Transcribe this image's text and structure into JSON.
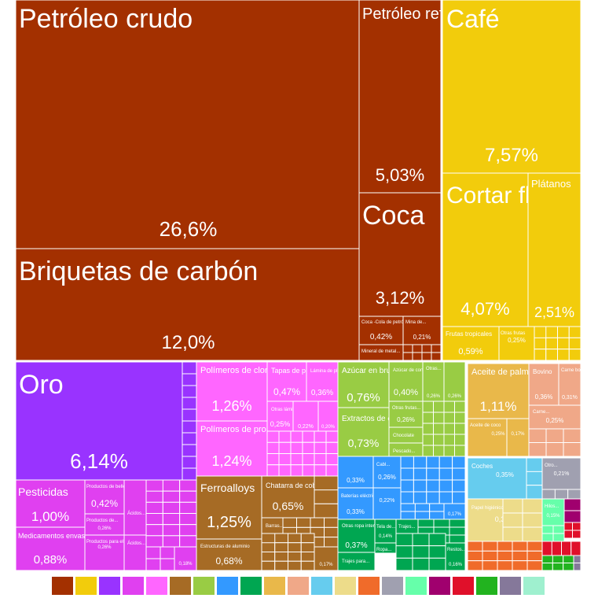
{
  "chart_data": {
    "type": "treemap",
    "title": "",
    "groups": [
      {
        "color": "#a33000",
        "items": [
          {
            "label": "Petróleo crudo",
            "value": "26,6%"
          },
          {
            "label": "Briquetas de carbón",
            "value": "12,0%"
          },
          {
            "label": "Petróleo refinado",
            "value": "5,03%"
          },
          {
            "label": "Coca",
            "value": "3,12%"
          },
          {
            "label": "Coca -Cola de petróleo",
            "value": "0,42%"
          },
          {
            "label": "Mina de...",
            "value": "0,21%"
          },
          {
            "label": "Mineral de metal...",
            "value": ""
          }
        ]
      },
      {
        "color": "#f2cc0c",
        "items": [
          {
            "label": "Café",
            "value": "7,57%"
          },
          {
            "label": "Cortar flores",
            "value": "4,07%"
          },
          {
            "label": "Plátanos",
            "value": "2,51%"
          },
          {
            "label": "Frutas tropicales",
            "value": "0,59%"
          },
          {
            "label": "Otras frutas",
            "value": "0,25%"
          }
        ]
      },
      {
        "color": "#9933ff",
        "items": [
          {
            "label": "Oro",
            "value": "6,14%"
          }
        ]
      },
      {
        "color": "#ff66ff",
        "items": [
          {
            "label": "Polímeros de cloruro de vinilo",
            "value": "1,26%"
          },
          {
            "label": "Polímeros de propileno",
            "value": "1,24%"
          },
          {
            "label": "Tapas de plástico",
            "value": "0,47%"
          },
          {
            "label": "Lámina de plástico...",
            "value": "0,36%"
          },
          {
            "label": "Otras láminas...",
            "value": "0,25%"
          },
          {
            "label": "",
            "value": "0,22%"
          },
          {
            "label": "",
            "value": "0,20%"
          }
        ]
      },
      {
        "color": "#e040f0",
        "items": [
          {
            "label": "Pesticidas",
            "value": "1,00%"
          },
          {
            "label": "Medicamentos envasados",
            "value": "0,88%"
          },
          {
            "label": "Productos de belleza",
            "value": "0,42%"
          },
          {
            "label": "Productos de...",
            "value": "0,26%"
          },
          {
            "label": "Productos para el...",
            "value": "0,26%"
          },
          {
            "label": "Ácidos...",
            "value": ""
          },
          {
            "label": "Ácidos...",
            "value": ""
          },
          {
            "label": "",
            "value": "0,18%"
          }
        ]
      },
      {
        "color": "#a66b25",
        "items": [
          {
            "label": "Ferroalloys",
            "value": "1,25%"
          },
          {
            "label": "Chatarra de cobre",
            "value": "0,65%"
          },
          {
            "label": "Estructuras de aluminio",
            "value": "0,68%"
          },
          {
            "label": "Barras...",
            "value": ""
          },
          {
            "label": "",
            "value": "0,17%"
          }
        ]
      },
      {
        "color": "#99cc44",
        "items": [
          {
            "label": "Azúcar en bruto",
            "value": "0,76%"
          },
          {
            "label": "Extractos de café y té",
            "value": "0,73%"
          },
          {
            "label": "Azúcar de confitería",
            "value": "0,40%"
          },
          {
            "label": "Otras...",
            "value": "0,26%"
          },
          {
            "label": "",
            "value": "0,26%"
          },
          {
            "label": "Otras frutas...",
            "value": "0,26%"
          },
          {
            "label": "Chocolate",
            "value": ""
          },
          {
            "label": "Pescado...",
            "value": ""
          }
        ]
      },
      {
        "color": "#e9b84a",
        "items": [
          {
            "label": "Aceite de palma",
            "value": "1,11%"
          },
          {
            "label": "Aceite de coco",
            "value": "0,25%"
          },
          {
            "label": "",
            "value": "0,17%"
          }
        ]
      },
      {
        "color": "#f0a888",
        "items": [
          {
            "label": "Bovino",
            "value": "0,36%"
          },
          {
            "label": "Carne bovino...",
            "value": "0,31%"
          },
          {
            "label": "Carne...",
            "value": "0,25%"
          }
        ]
      },
      {
        "color": "#3399ff",
        "items": [
          {
            "label": "",
            "value": "0,33%"
          },
          {
            "label": "Cabl...",
            "value": "0,26%"
          },
          {
            "label": "Baterías eléctricas",
            "value": "0,33%"
          },
          {
            "label": "",
            "value": "0,22%"
          },
          {
            "label": "",
            "value": "0,17%"
          }
        ]
      },
      {
        "color": "#00a651",
        "items": [
          {
            "label": "Otras ropa interior de...",
            "value": "0,37%"
          },
          {
            "label": "Tela de...",
            "value": "0,14%"
          },
          {
            "label": "Trajes...",
            "value": ""
          },
          {
            "label": "Ropa...",
            "value": ""
          },
          {
            "label": "Trajes para...",
            "value": ""
          },
          {
            "label": "Restos...",
            "value": "0,16%"
          }
        ]
      },
      {
        "color": "#66ccee",
        "items": [
          {
            "label": "Coches",
            "value": "0,35%"
          }
        ]
      },
      {
        "color": "#a0a0b0",
        "items": [
          {
            "label": "Otro...",
            "value": "0,21%"
          }
        ]
      },
      {
        "color": "#eddc8a",
        "items": [
          {
            "label": "Papel higiénico",
            "value": "0,33%"
          }
        ]
      },
      {
        "color": "#66ffaa",
        "items": [
          {
            "label": "Hilos...",
            "value": "0,15%"
          }
        ]
      }
    ],
    "legend": {
      "placement": "bottom",
      "colors": [
        "#a33000",
        "#f2cc0c",
        "#9933ff",
        "#e040f0",
        "#ff66ff",
        "#a66b25",
        "#99cc44",
        "#3399ff",
        "#00a651",
        "#e9b84a",
        "#f0a888",
        "#66ccee",
        "#eddc8a",
        "#f06b2a",
        "#a0a0b0",
        "#66ffaa",
        "#a0006e",
        "#e0102a",
        "#22b31f",
        "#85789a",
        "#9ff0cf"
      ]
    }
  }
}
